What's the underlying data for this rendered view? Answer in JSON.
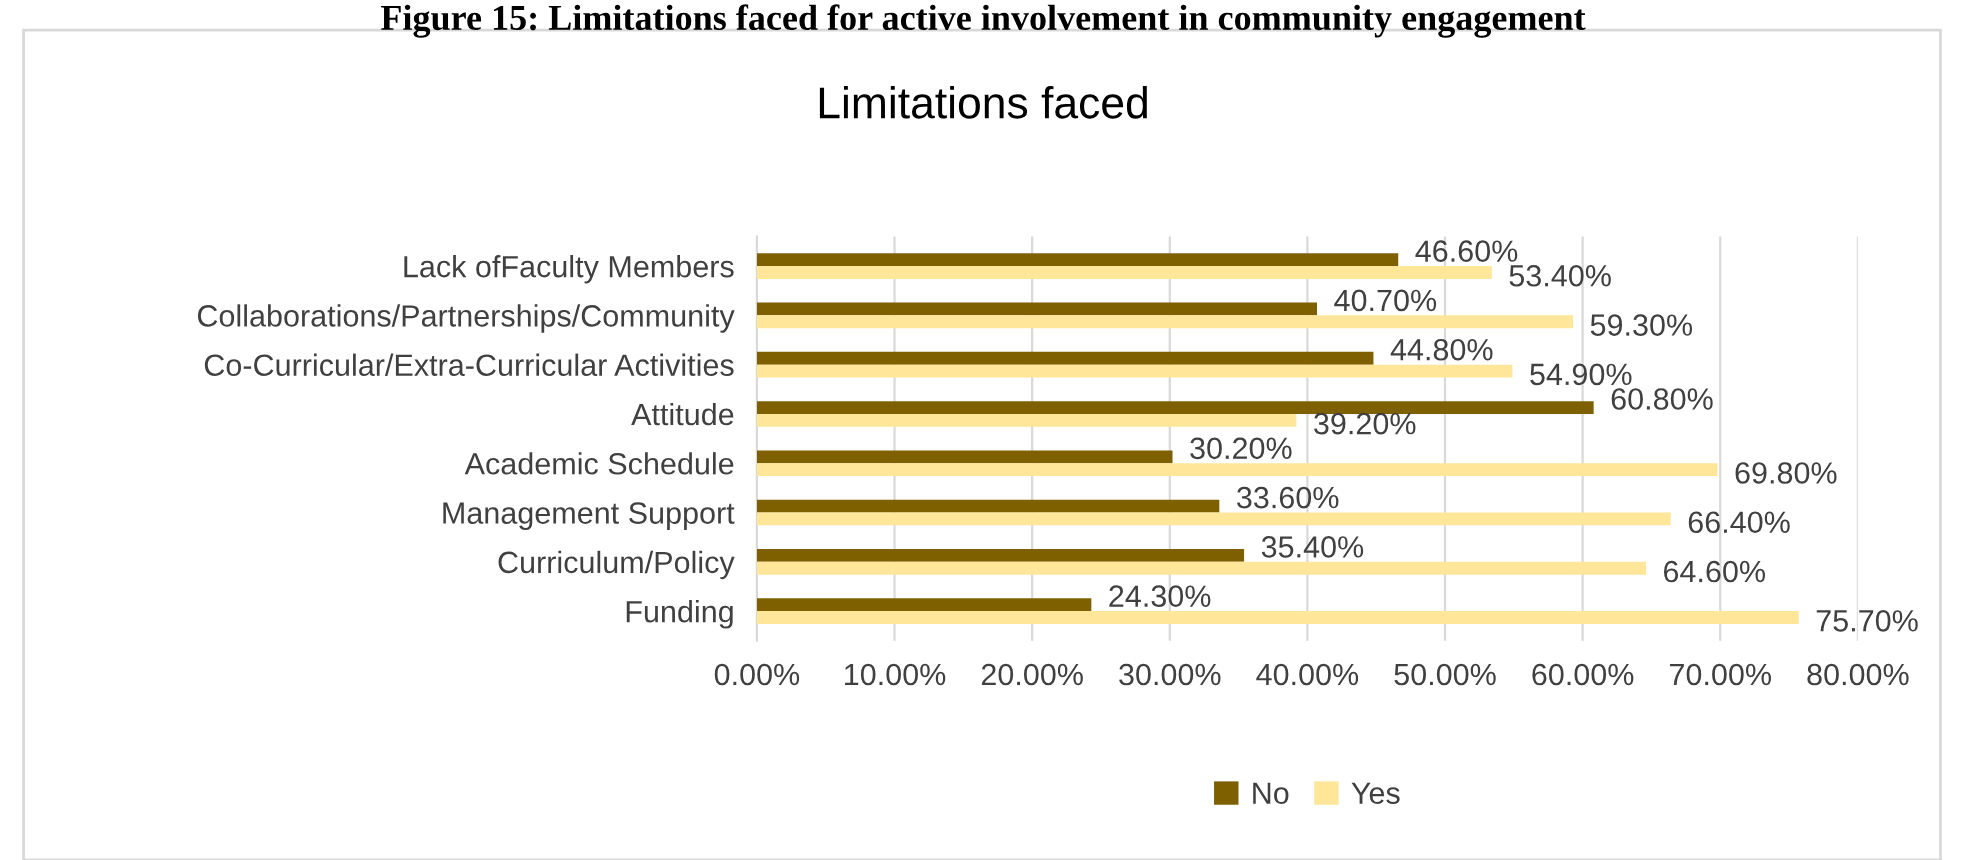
{
  "chart_data": {
    "type": "bar",
    "orientation": "horizontal",
    "title": "Limitations faced",
    "annotations": [
      "Figure 15: Limitations faced for active involvement in community engagement"
    ],
    "categories": [
      "Lack ofFaculty Members",
      "Collaborations/Partnerships/Community",
      "Co-Curricular/Extra-Curricular Activities",
      "Attitude",
      "Academic Schedule",
      "Management Support",
      "Curriculum/Policy",
      "Funding"
    ],
    "series": [
      {
        "name": "No",
        "color": "#7f6000",
        "values": [
          46.6,
          40.7,
          44.8,
          60.8,
          30.2,
          33.6,
          35.4,
          24.3
        ],
        "value_labels": [
          "46.60%",
          "40.70%",
          "44.80%",
          "60.80%",
          "30.20%",
          "33.60%",
          "35.40%",
          "24.30%"
        ]
      },
      {
        "name": "Yes",
        "color": "#ffe699",
        "values": [
          53.4,
          59.3,
          54.9,
          39.2,
          69.8,
          66.4,
          64.6,
          75.7
        ],
        "value_labels": [
          "53.40%",
          "59.30%",
          "54.90%",
          "39.20%",
          "69.80%",
          "66.40%",
          "64.60%",
          "75.70%"
        ]
      }
    ],
    "xlim": [
      0,
      80
    ],
    "xticks": [
      {
        "value": 0,
        "label": "0.00%"
      },
      {
        "value": 10,
        "label": "10.00%"
      },
      {
        "value": 20,
        "label": "20.00%"
      },
      {
        "value": 30,
        "label": "30.00%"
      },
      {
        "value": 40,
        "label": "40.00%"
      },
      {
        "value": 50,
        "label": "50.00%"
      },
      {
        "value": 60,
        "label": "60.00%"
      },
      {
        "value": 70,
        "label": "70.00%"
      },
      {
        "value": 80,
        "label": "80.00%"
      }
    ],
    "grid": "x",
    "legend": "bottom"
  }
}
